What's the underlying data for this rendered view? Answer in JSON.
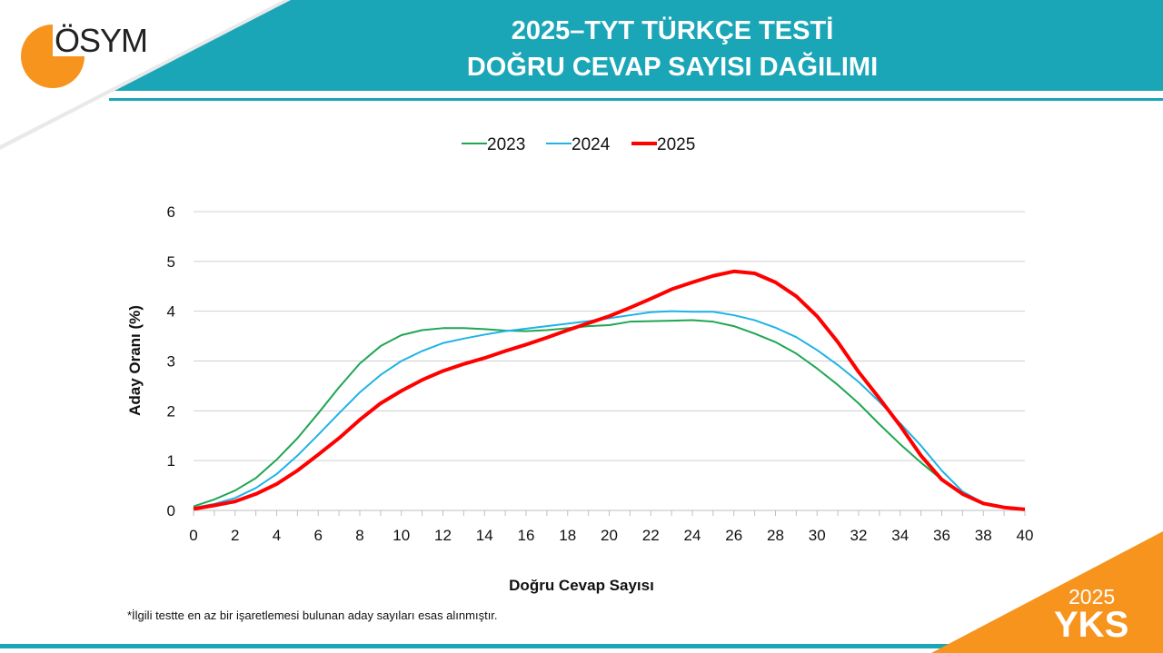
{
  "header": {
    "title_line1": "2025–TYT TÜRKÇE TESTİ",
    "title_line2": "DOĞRU CEVAP SAYISI DAĞILIMI",
    "logo": "ÖSYM"
  },
  "badge": {
    "year": "2025",
    "exam": "YKS"
  },
  "footnote": "*İlgili testte en az bir işaretlemesi bulunan aday sayıları esas alınmıştır.",
  "colors": {
    "teal": "#1aa6b7",
    "orange": "#f7941d",
    "s2023": "#1fa653",
    "s2024": "#1fb3e6",
    "s2025": "#ff0000"
  },
  "chart_data": {
    "type": "line",
    "xlabel": "Doğru Cevap Sayısı",
    "ylabel": "Aday Oranı (%)",
    "xlim": [
      0,
      40
    ],
    "ylim": [
      0,
      6
    ],
    "xticks": [
      0,
      2,
      4,
      6,
      8,
      10,
      12,
      14,
      16,
      18,
      20,
      22,
      24,
      26,
      28,
      30,
      32,
      34,
      36,
      38,
      40
    ],
    "yticks": [
      0,
      1,
      2,
      3,
      4,
      5,
      6
    ],
    "legend_position": "top-center",
    "grid": true,
    "x": [
      0,
      1,
      2,
      3,
      4,
      5,
      6,
      7,
      8,
      9,
      10,
      11,
      12,
      13,
      14,
      15,
      16,
      17,
      18,
      19,
      20,
      21,
      22,
      23,
      24,
      25,
      26,
      27,
      28,
      29,
      30,
      31,
      32,
      33,
      34,
      35,
      36,
      37,
      38,
      39,
      40
    ],
    "series": [
      {
        "name": "2023",
        "color": "#1fa653",
        "width": 2,
        "values": [
          0.08,
          0.22,
          0.4,
          0.65,
          1.02,
          1.45,
          1.95,
          2.47,
          2.95,
          3.3,
          3.52,
          3.62,
          3.66,
          3.66,
          3.64,
          3.61,
          3.6,
          3.62,
          3.66,
          3.7,
          3.72,
          3.79,
          3.8,
          3.81,
          3.82,
          3.79,
          3.7,
          3.55,
          3.38,
          3.15,
          2.85,
          2.52,
          2.15,
          1.73,
          1.33,
          0.96,
          0.62,
          0.35,
          0.14,
          0.06,
          0.02
        ]
      },
      {
        "name": "2024",
        "color": "#1fb3e6",
        "width": 2,
        "values": [
          0.05,
          0.13,
          0.25,
          0.45,
          0.73,
          1.1,
          1.52,
          1.95,
          2.37,
          2.72,
          3.0,
          3.2,
          3.36,
          3.45,
          3.53,
          3.6,
          3.65,
          3.7,
          3.75,
          3.8,
          3.86,
          3.92,
          3.98,
          4.0,
          3.99,
          3.99,
          3.92,
          3.82,
          3.67,
          3.48,
          3.22,
          2.92,
          2.58,
          2.18,
          1.75,
          1.3,
          0.8,
          0.38,
          0.15,
          0.06,
          0.02
        ]
      },
      {
        "name": "2025",
        "color": "#ff0000",
        "width": 4,
        "values": [
          0.03,
          0.1,
          0.18,
          0.33,
          0.53,
          0.8,
          1.12,
          1.45,
          1.82,
          2.15,
          2.4,
          2.62,
          2.8,
          2.94,
          3.06,
          3.2,
          3.33,
          3.47,
          3.62,
          3.76,
          3.9,
          4.07,
          4.25,
          4.44,
          4.58,
          4.71,
          4.8,
          4.76,
          4.58,
          4.3,
          3.9,
          3.38,
          2.78,
          2.25,
          1.7,
          1.1,
          0.62,
          0.33,
          0.14,
          0.06,
          0.02
        ]
      }
    ]
  }
}
